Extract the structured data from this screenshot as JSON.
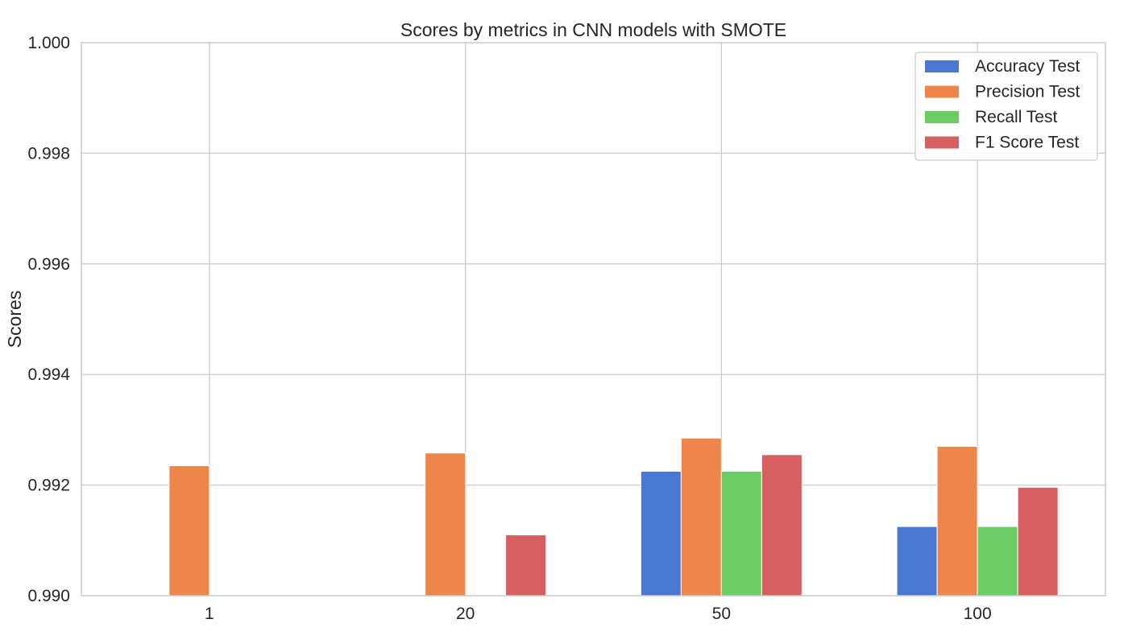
{
  "chart_data": {
    "type": "bar",
    "title": "Scores by metrics in CNN models with SMOTE",
    "xlabel": "",
    "ylabel": "Scores",
    "categories": [
      "1",
      "20",
      "50",
      "100"
    ],
    "ylim": [
      0.99,
      1.0
    ],
    "yticks": [
      "0.990",
      "0.992",
      "0.994",
      "0.996",
      "0.998",
      "1.000"
    ],
    "grid": true,
    "legend_position": "top-right",
    "series": [
      {
        "name": "Accuracy Test",
        "color": "#4878d0",
        "values": [
          0.99,
          0.99,
          0.99225,
          0.99125
        ]
      },
      {
        "name": "Precision Test",
        "color": "#ee854a",
        "values": [
          0.99235,
          0.99258,
          0.99285,
          0.9927
        ]
      },
      {
        "name": "Recall Test",
        "color": "#6acc64",
        "values": [
          0.99,
          0.99,
          0.99225,
          0.99125
        ]
      },
      {
        "name": "F1 Score Test",
        "color": "#d65f5f",
        "values": [
          0.99,
          0.9911,
          0.99255,
          0.99196
        ]
      }
    ]
  }
}
